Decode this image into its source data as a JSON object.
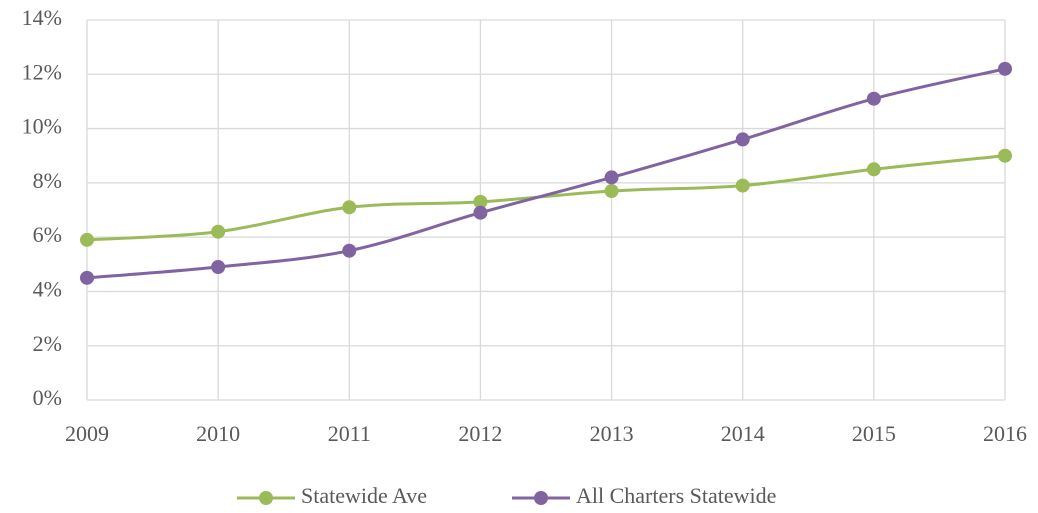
{
  "chart_data": {
    "type": "line",
    "categories": [
      "2009",
      "2010",
      "2011",
      "2012",
      "2013",
      "2014",
      "2015",
      "2016"
    ],
    "series": [
      {
        "name": "Statewide Ave",
        "color": "#9bbb59",
        "values": [
          5.9,
          6.2,
          7.1,
          7.3,
          7.7,
          7.9,
          8.5,
          9.0
        ]
      },
      {
        "name": "All Charters Statewide",
        "color": "#8064a2",
        "values": [
          4.5,
          4.9,
          5.5,
          6.9,
          8.2,
          9.6,
          11.1,
          12.2
        ]
      }
    ],
    "ylim": [
      0,
      14
    ],
    "yticks": [
      {
        "value": 0,
        "label": "0%"
      },
      {
        "value": 2,
        "label": "2%"
      },
      {
        "value": 4,
        "label": "4%"
      },
      {
        "value": 6,
        "label": "6%"
      },
      {
        "value": 8,
        "label": "8%"
      },
      {
        "value": 10,
        "label": "10%"
      },
      {
        "value": 12,
        "label": "12%"
      },
      {
        "value": 14,
        "label": "14%"
      }
    ],
    "grid": true,
    "smooth": true,
    "legend": "bottom"
  }
}
